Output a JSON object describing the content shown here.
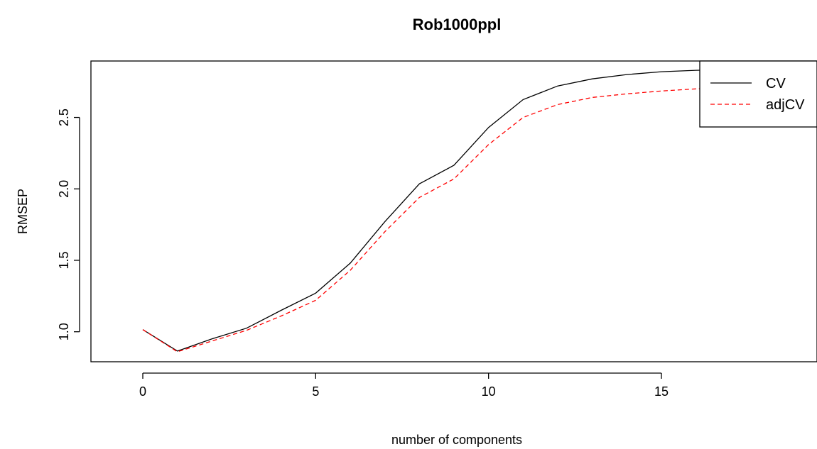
{
  "chart_data": {
    "type": "line",
    "title": "Rob1000ppl",
    "xlabel": "number of components",
    "ylabel": "RMSEP",
    "xlim": [
      -1.5,
      19.5
    ],
    "ylim": [
      0.79,
      2.895
    ],
    "xticks": [
      0,
      5,
      10,
      15
    ],
    "xtick_labels": [
      "0",
      "5",
      "10",
      "15"
    ],
    "yticks": [
      1.0,
      1.5,
      2.0,
      2.5
    ],
    "ytick_labels": [
      "1.0",
      "1.5",
      "2.0",
      "2.5"
    ],
    "grid": false,
    "legend_position": "top-right",
    "x": [
      0,
      1,
      2,
      3,
      4,
      5,
      6,
      7,
      8,
      9,
      10,
      11,
      12,
      13,
      14,
      15,
      16,
      17,
      18,
      19
    ],
    "series": [
      {
        "name": "CV",
        "color": "#000000",
        "dash": "solid",
        "values": [
          1.015,
          0.865,
          0.95,
          1.025,
          1.15,
          1.27,
          1.48,
          1.77,
          2.035,
          2.165,
          2.43,
          2.625,
          2.72,
          2.77,
          2.8,
          2.82,
          2.83,
          2.835,
          2.84,
          2.845
        ]
      },
      {
        "name": "adjCV",
        "color": "#ff0000",
        "dash": "dashed",
        "values": [
          1.015,
          0.86,
          0.935,
          1.01,
          1.11,
          1.22,
          1.43,
          1.7,
          1.94,
          2.07,
          2.31,
          2.5,
          2.59,
          2.64,
          2.665,
          2.685,
          2.7,
          2.71,
          2.715,
          2.72
        ]
      }
    ]
  }
}
